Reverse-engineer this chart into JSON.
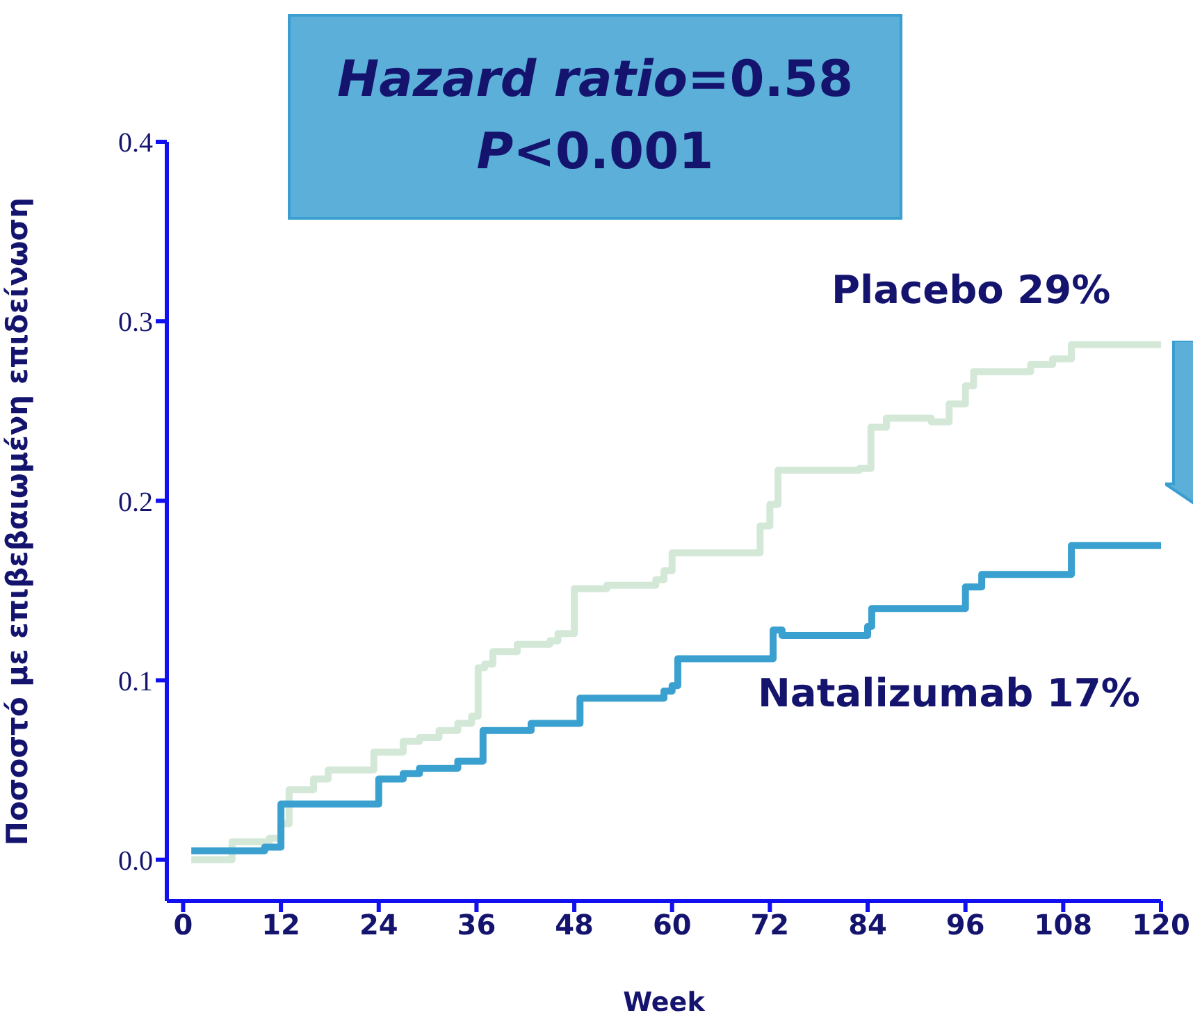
{
  "chart_data": {
    "type": "step",
    "xlabel": "Week",
    "ylabel": "Ποσοστό με επιβεβαιωμένη επιδείνωση",
    "annotations": [
      "Hazard ratio=0.58",
      "P<0.001"
    ],
    "xlim": [
      -2,
      120
    ],
    "xticks": [
      0,
      12,
      24,
      36,
      48,
      60,
      72,
      84,
      96,
      108,
      120
    ],
    "ylim": [
      -0.023,
      0.4
    ],
    "yticks": [
      {
        "value": 0,
        "label": "0.0"
      },
      0.1,
      0.2,
      0.3,
      0.4
    ],
    "series": [
      {
        "name": "Placebo 29%",
        "color": "#d4e8d8",
        "x": [
          1,
          6,
          10.6,
          12,
          13,
          16,
          17.8,
          23.4,
          27,
          29,
          31.4,
          33.7,
          35.4,
          36.2,
          37,
          38,
          41,
          45,
          46,
          48,
          52,
          58,
          59,
          60,
          67.5,
          70.8,
          72,
          73,
          83,
          84.4,
          86.3,
          91.8,
          94,
          96,
          97,
          104,
          106.7,
          109,
          120
        ],
        "values": [
          0,
          0.01,
          0.012,
          0.02,
          0.039,
          0.045,
          0.05,
          0.06,
          0.066,
          0.068,
          0.072,
          0.076,
          0.08,
          0.107,
          0.109,
          0.116,
          0.12,
          0.122,
          0.126,
          0.151,
          0.153,
          0.156,
          0.161,
          0.171,
          0.171,
          0.186,
          0.198,
          0.217,
          0.218,
          0.241,
          0.246,
          0.244,
          0.254,
          0.264,
          0.272,
          0.276,
          0.279,
          0.287,
          0.287
        ]
      },
      {
        "name": "Natalizumab 17%",
        "color": "#3aa0cf",
        "x": [
          1,
          10,
          12,
          24,
          27,
          29,
          31,
          33.7,
          35.5,
          36.8,
          38,
          42.7,
          47.7,
          48.7,
          59,
          60,
          60.7,
          71.6,
          72.4,
          73.5,
          84,
          84.5,
          95.5,
          96,
          98,
          108,
          109,
          120
        ],
        "values": [
          0.005,
          0.007,
          0.031,
          0.045,
          0.048,
          0.051,
          0.051,
          0.055,
          0.055,
          0.072,
          0.072,
          0.076,
          0.076,
          0.09,
          0.094,
          0.097,
          0.112,
          0.112,
          0.128,
          0.125,
          0.13,
          0.14,
          0.14,
          0.152,
          0.159,
          0.159,
          0.175,
          0.175
        ]
      }
    ]
  }
}
